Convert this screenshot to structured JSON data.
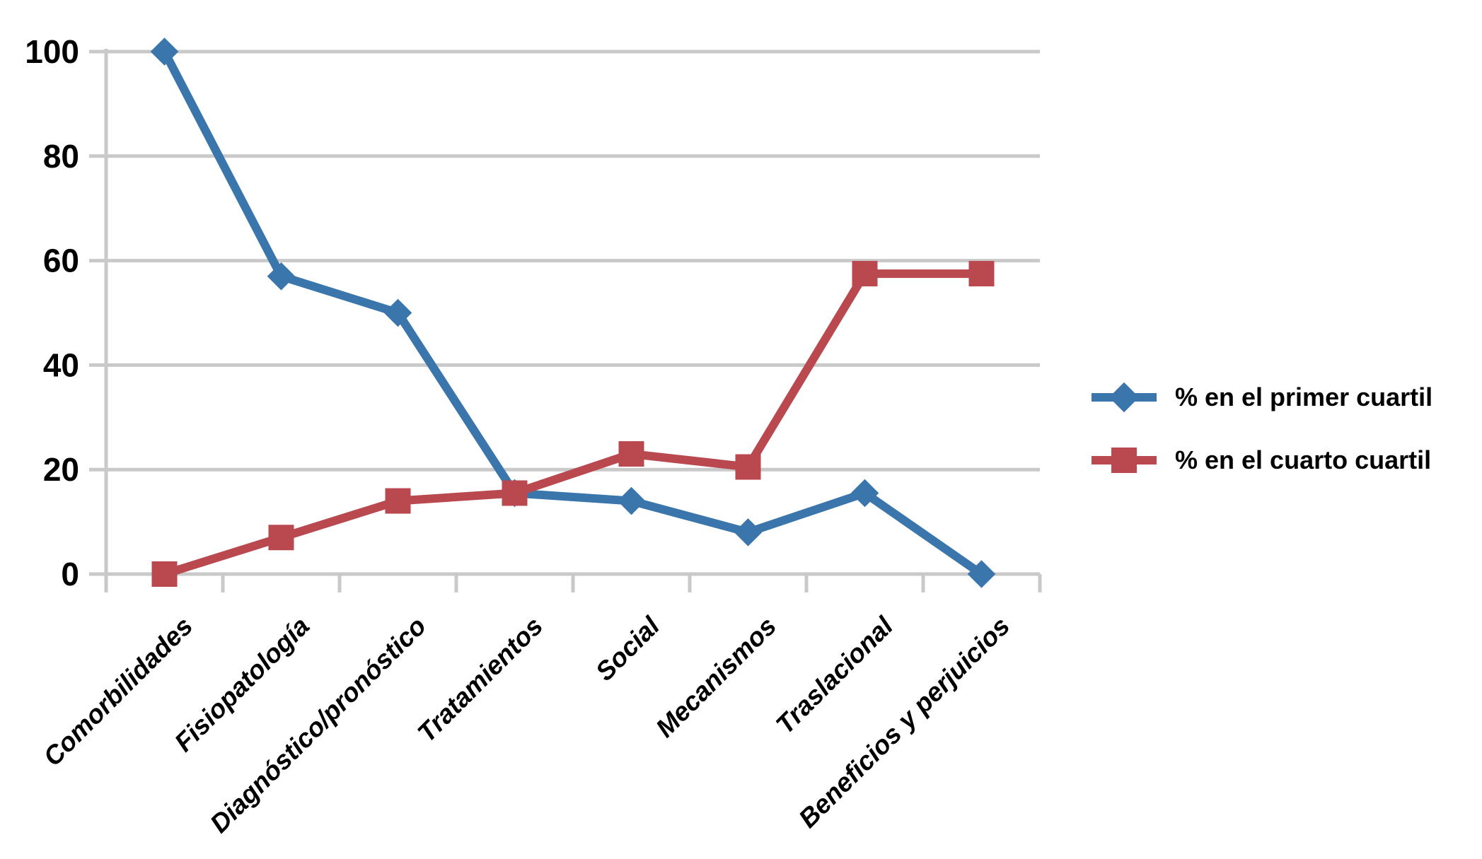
{
  "chart_data": {
    "type": "line",
    "title": "",
    "xlabel": "",
    "ylabel": "",
    "categories": [
      "Comorbilidades",
      "Fisiopatología",
      "Diagnóstico/pronóstico",
      "Tratamientos",
      "Social",
      "Mecanismos",
      "Traslacional",
      "Beneficios y perjuicios"
    ],
    "series": [
      {
        "name": "% en el primer cuartil",
        "marker": "diamond",
        "color": "#3A76AC",
        "values": [
          100,
          57,
          50,
          15.5,
          14,
          8,
          15.5,
          0
        ]
      },
      {
        "name": "% en el cuarto cuartil",
        "marker": "square",
        "color": "#B9494F",
        "values": [
          0,
          7,
          14,
          15.5,
          23,
          20.5,
          57.5,
          57.5
        ]
      }
    ],
    "ylim": [
      0,
      100
    ],
    "yticks": [
      0,
      20,
      40,
      60,
      80,
      100
    ],
    "grid": true,
    "grid_color": "#C9C9C9",
    "background_color": "#FFFFFF",
    "tick_label_color": "#000000",
    "legend_position": "right"
  }
}
